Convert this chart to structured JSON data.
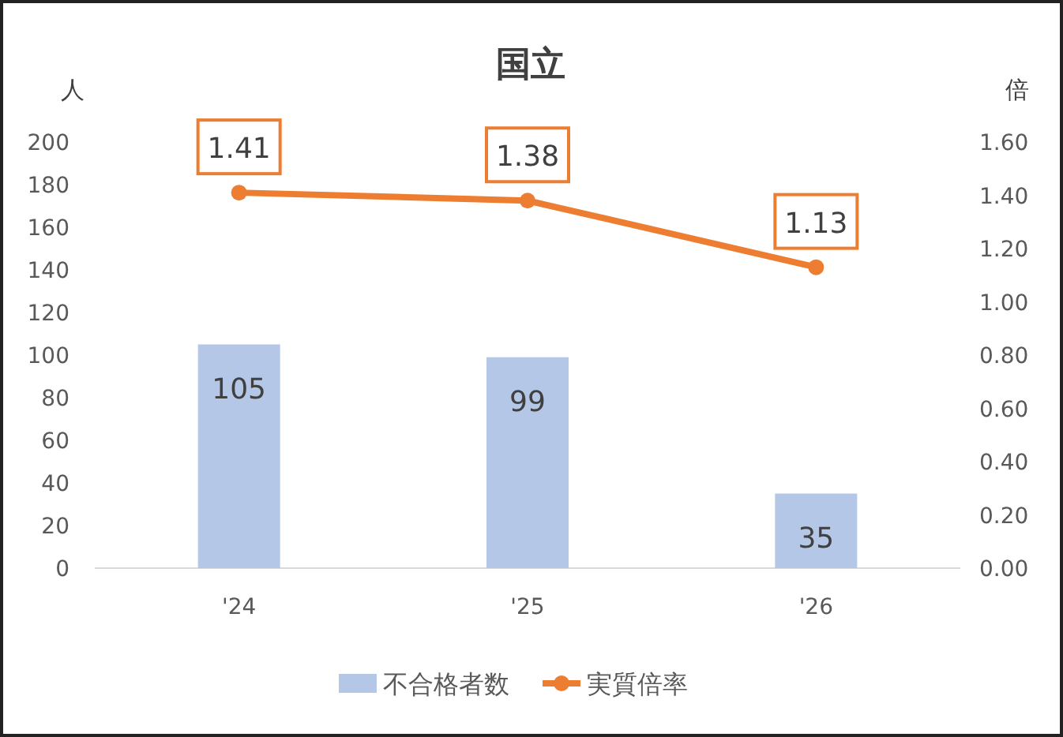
{
  "chart_data": {
    "type": "bar",
    "title": "国立",
    "ylabel": "人",
    "y2label": "倍",
    "categories": [
      "'24",
      "'25",
      "'26"
    ],
    "series": [
      {
        "name": "不合格者数",
        "color": "#b4c7e7",
        "values": [
          105,
          99,
          35
        ]
      },
      {
        "name": "実質倍率",
        "type": "line",
        "axis": "y2",
        "color": "#ed7d31",
        "marker": "circle",
        "values": [
          1.41,
          1.38,
          1.13
        ]
      }
    ],
    "ylim": [
      0,
      200
    ],
    "yticks": [
      0,
      20,
      40,
      60,
      80,
      100,
      120,
      140,
      160,
      180,
      200
    ],
    "y2lim": [
      0,
      1.6
    ],
    "y2ticks": [
      {
        "value": 0,
        "label": "0.00"
      },
      {
        "value": 0.2,
        "label": "0.20"
      },
      {
        "value": 0.4,
        "label": "0.40"
      },
      {
        "value": 0.6,
        "label": "0.60"
      },
      {
        "value": 0.8,
        "label": "0.80"
      },
      {
        "value": 1,
        "label": "1.00"
      },
      {
        "value": 1.2,
        "label": "1.20"
      },
      {
        "value": 1.4,
        "label": "1.40"
      },
      {
        "value": 1.6,
        "label": "1.60"
      }
    ],
    "data_labels": true,
    "legend": "bottom",
    "grid": false
  }
}
